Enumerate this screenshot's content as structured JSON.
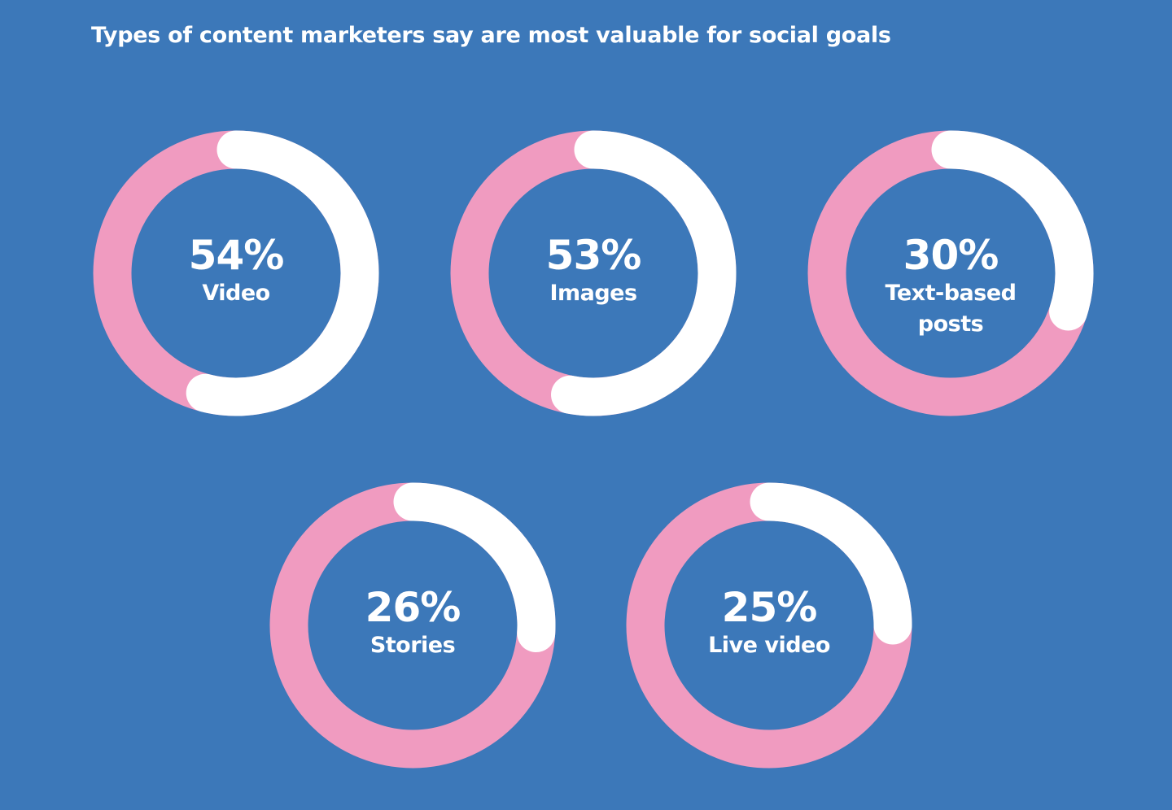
{
  "chart_data": {
    "type": "donut",
    "title": "Types of content marketers say are most valuable for social goals",
    "categories": [
      "Video",
      "Images",
      "Text-based posts",
      "Stories",
      "Live video"
    ],
    "values": [
      54,
      53,
      30,
      26,
      25
    ],
    "value_labels": [
      "54%",
      "53%",
      "30%",
      "26%",
      "25%"
    ],
    "ylim": [
      0,
      100
    ],
    "color": "#ffffff",
    "track_color": "#f09bc0"
  }
}
